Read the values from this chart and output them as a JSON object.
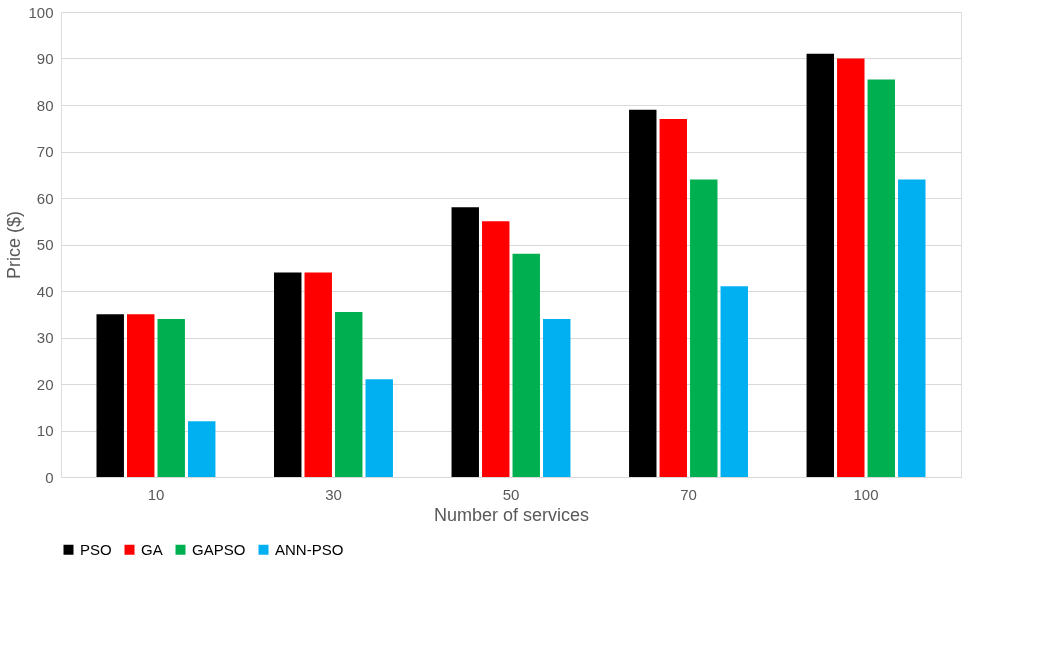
{
  "chart_data": {
    "type": "bar",
    "xlabel": "Number of services",
    "ylabel": "Price ($)",
    "categories": [
      "10",
      "30",
      "50",
      "70",
      "100"
    ],
    "series": [
      {
        "name": "PSO",
        "color": "#000000",
        "values": [
          35,
          44,
          58,
          79,
          91
        ]
      },
      {
        "name": "GA",
        "color": "#ff0000",
        "values": [
          35,
          44,
          55,
          77,
          90
        ]
      },
      {
        "name": "GAPSO",
        "color": "#00b050",
        "values": [
          34,
          35.5,
          48,
          64,
          85.5
        ]
      },
      {
        "name": "ANN-PSO",
        "color": "#00b0f0",
        "values": [
          12,
          21,
          34,
          41,
          64
        ]
      }
    ],
    "ylim": [
      0,
      100
    ],
    "yticks": [
      0,
      10,
      20,
      30,
      40,
      50,
      60,
      70,
      80,
      90,
      100
    ],
    "grid": "y",
    "legend": "bottom"
  }
}
